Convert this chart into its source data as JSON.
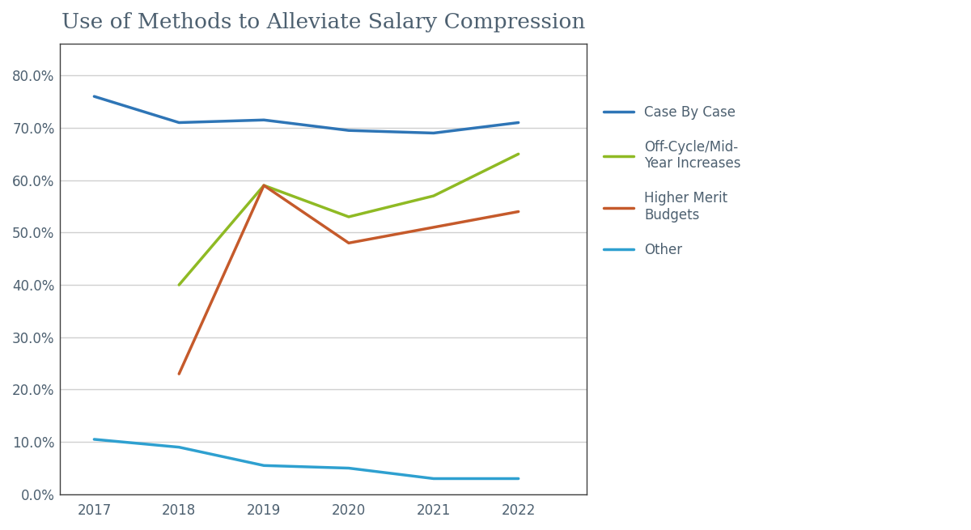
{
  "title": "Use of Methods to Alleviate Salary Compression",
  "years": [
    2017,
    2018,
    2019,
    2020,
    2021,
    2022
  ],
  "series": [
    {
      "label": "Case By Case",
      "color": "#2e75b6",
      "values": [
        0.76,
        0.71,
        0.715,
        0.695,
        0.69,
        0.71
      ]
    },
    {
      "label": "Off-Cycle/Mid-\nYear Increases",
      "color": "#8fba24",
      "values": [
        null,
        0.4,
        0.59,
        0.53,
        0.57,
        0.65
      ]
    },
    {
      "label": "Higher Merit\nBudgets",
      "color": "#c55a2b",
      "values": [
        null,
        0.23,
        0.59,
        0.48,
        0.51,
        0.54
      ]
    },
    {
      "label": "Other",
      "color": "#2ea0d0",
      "values": [
        0.105,
        0.09,
        0.055,
        0.05,
        0.03,
        0.03
      ]
    }
  ],
  "ylim": [
    0.0,
    0.86
  ],
  "yticks": [
    0.0,
    0.1,
    0.2,
    0.3,
    0.4,
    0.5,
    0.6,
    0.7,
    0.8
  ],
  "background_color": "#ffffff",
  "grid_color": "#d0d0d0",
  "linewidth": 2.5,
  "title_fontsize": 19,
  "tick_fontsize": 12,
  "legend_fontsize": 12,
  "text_color": "#4d6070",
  "border_color": "#404040"
}
